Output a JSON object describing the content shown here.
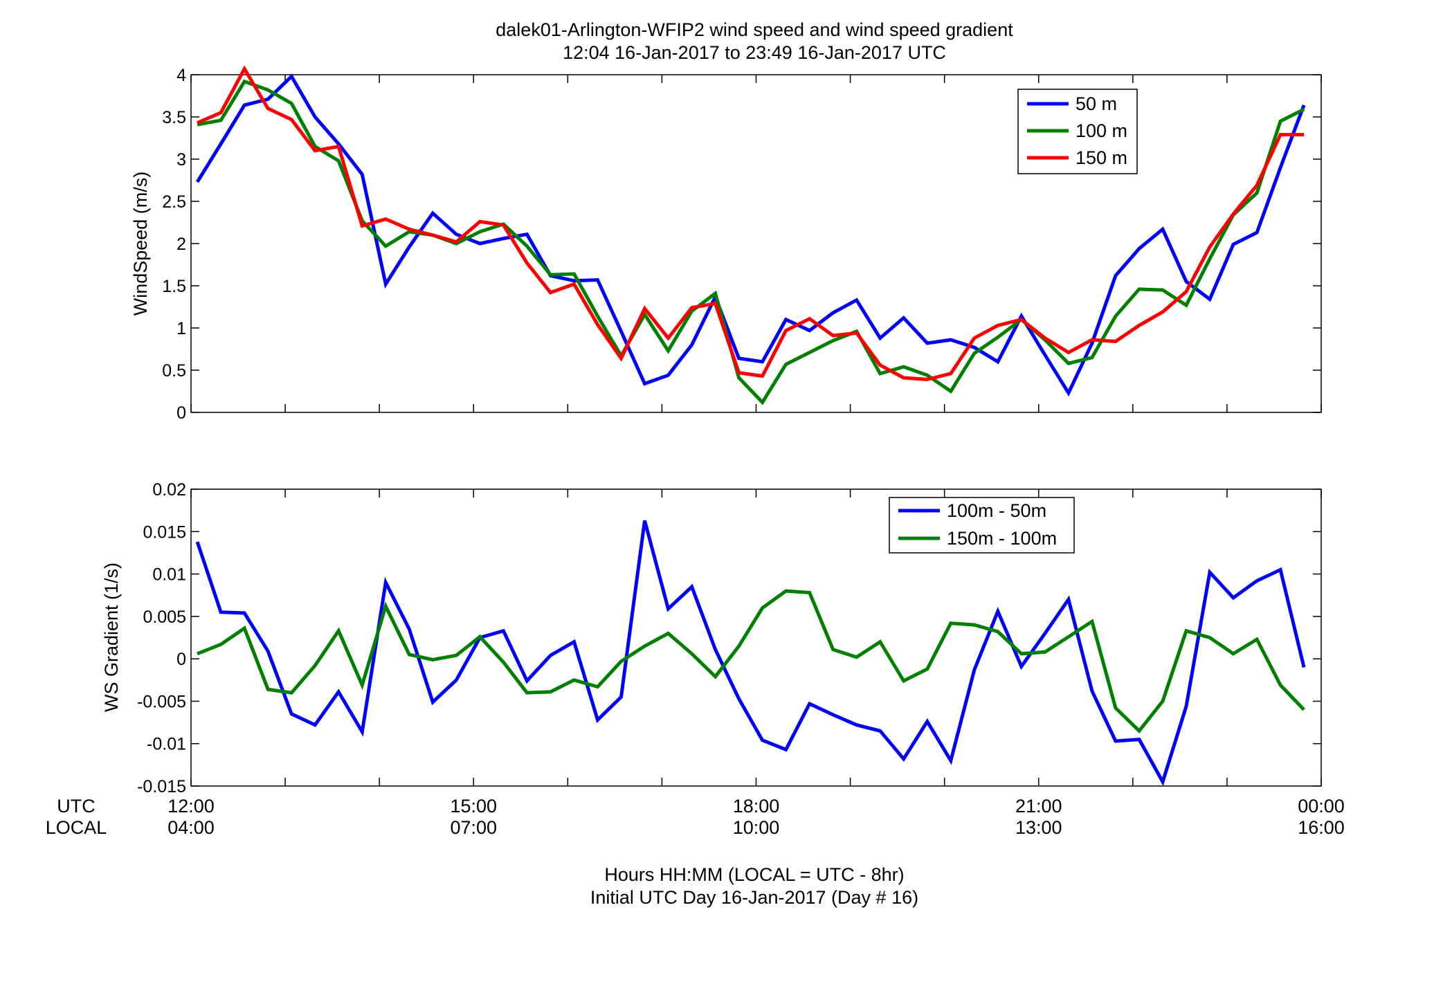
{
  "figure": {
    "title_line1": "dalek01-Arlington-WFIP2  wind speed and wind speed gradient",
    "title_line2": "12:04 16-Jan-2017 to 23:49 16-Jan-2017  UTC",
    "xlabel_line1": "Hours HH:MM  (LOCAL = UTC - 8hr)",
    "xlabel_line2": "Initial UTC Day 16-Jan-2017 (Day # 16)",
    "utc_row_label": "UTC",
    "local_row_label": "LOCAL",
    "utc_ticks": [
      "12:00",
      "15:00",
      "18:00",
      "21:00",
      "00:00"
    ],
    "local_ticks": [
      "04:00",
      "07:00",
      "10:00",
      "13:00",
      "16:00"
    ],
    "colors": {
      "blue": "#0000ff",
      "green": "#007f00",
      "red": "#ff0000"
    }
  },
  "chart_data": [
    {
      "type": "line",
      "ylabel": "WindSpeed (m/s)",
      "xlim": [
        12,
        24
      ],
      "ylim": [
        0,
        4
      ],
      "yticks": [
        0,
        0.5,
        1,
        1.5,
        2,
        2.5,
        3,
        3.5,
        4
      ],
      "ytick_labels": [
        "0",
        "0.5",
        "1",
        "1.5",
        "2",
        "2.5",
        "3",
        "3.5",
        "4"
      ],
      "grid": false,
      "legend": "top-right",
      "x": [
        12.067,
        12.317,
        12.567,
        12.817,
        13.067,
        13.317,
        13.567,
        13.817,
        14.067,
        14.317,
        14.567,
        14.817,
        15.067,
        15.317,
        15.567,
        15.817,
        16.067,
        16.317,
        16.567,
        16.817,
        17.067,
        17.317,
        17.567,
        17.817,
        18.067,
        18.317,
        18.567,
        18.817,
        19.067,
        19.317,
        19.567,
        19.817,
        20.067,
        20.317,
        20.567,
        20.817,
        21.067,
        21.317,
        21.567,
        21.817,
        22.067,
        22.317,
        22.567,
        22.817,
        23.067,
        23.317,
        23.567,
        23.817
      ],
      "series": [
        {
          "name": "50 m",
          "color": "#0000ff",
          "values": [
            2.73,
            3.18,
            3.64,
            3.71,
            3.98,
            3.5,
            3.18,
            2.82,
            1.52,
            1.96,
            2.36,
            2.11,
            2.0,
            2.06,
            2.11,
            1.62,
            1.56,
            1.57,
            0.96,
            0.34,
            0.44,
            0.8,
            1.37,
            0.64,
            0.6,
            1.1,
            0.97,
            1.18,
            1.33,
            0.88,
            1.12,
            0.82,
            0.86,
            0.77,
            0.6,
            1.14,
            0.68,
            0.23,
            0.82,
            1.62,
            1.94,
            2.17,
            1.55,
            1.34,
            1.99,
            2.13,
            2.9,
            3.64
          ]
        },
        {
          "name": "100 m",
          "color": "#007f00",
          "values": [
            3.41,
            3.46,
            3.92,
            3.82,
            3.66,
            3.15,
            2.98,
            2.27,
            1.97,
            2.14,
            2.1,
            2.0,
            2.14,
            2.23,
            1.97,
            1.63,
            1.64,
            1.14,
            0.67,
            1.16,
            0.73,
            1.2,
            1.41,
            0.41,
            0.12,
            0.57,
            0.71,
            0.85,
            0.96,
            0.46,
            0.54,
            0.44,
            0.25,
            0.7,
            0.89,
            1.1,
            0.86,
            0.58,
            0.65,
            1.14,
            1.46,
            1.45,
            1.27,
            1.82,
            2.34,
            2.6,
            3.45,
            3.59
          ]
        },
        {
          "name": "150 m",
          "color": "#ff0000",
          "values": [
            3.43,
            3.55,
            4.07,
            3.6,
            3.47,
            3.1,
            3.15,
            2.21,
            2.29,
            2.17,
            2.1,
            2.02,
            2.26,
            2.22,
            1.77,
            1.42,
            1.52,
            1.04,
            0.64,
            1.23,
            0.88,
            1.24,
            1.29,
            0.47,
            0.43,
            0.97,
            1.11,
            0.91,
            0.94,
            0.56,
            0.41,
            0.39,
            0.46,
            0.88,
            1.03,
            1.1,
            0.88,
            0.71,
            0.86,
            0.84,
            1.03,
            1.19,
            1.43,
            1.96,
            2.35,
            2.69,
            3.29,
            3.29
          ]
        }
      ]
    },
    {
      "type": "line",
      "ylabel": "WS Gradient (1/s)",
      "xlim": [
        12,
        24
      ],
      "ylim": [
        -0.015,
        0.02
      ],
      "yticks": [
        -0.015,
        -0.01,
        -0.005,
        0,
        0.005,
        0.01,
        0.015,
        0.02
      ],
      "ytick_labels": [
        "-0.015",
        "-0.01",
        "-0.005",
        "0",
        "0.005",
        "0.01",
        "0.015",
        "0.02"
      ],
      "grid": false,
      "legend": "top-right",
      "x": [
        12.067,
        12.317,
        12.567,
        12.817,
        13.067,
        13.317,
        13.567,
        13.817,
        14.067,
        14.317,
        14.567,
        14.817,
        15.067,
        15.317,
        15.567,
        15.817,
        16.067,
        16.317,
        16.567,
        16.817,
        17.067,
        17.317,
        17.567,
        17.817,
        18.067,
        18.317,
        18.567,
        18.817,
        19.067,
        19.317,
        19.567,
        19.817,
        20.067,
        20.317,
        20.567,
        20.817,
        21.067,
        21.317,
        21.567,
        21.817,
        22.067,
        22.317,
        22.567,
        22.817,
        23.067,
        23.317,
        23.567,
        23.817
      ],
      "series": [
        {
          "name": "100m - 50m",
          "color": "#0000ff",
          "values": [
            0.0138,
            0.0055,
            0.0054,
            0.0009,
            -0.0065,
            -0.0078,
            -0.0039,
            -0.0086,
            0.009,
            0.0035,
            -0.0051,
            -0.0025,
            0.0025,
            0.0033,
            -0.0026,
            0.0004,
            0.002,
            -0.0072,
            -0.0045,
            0.0163,
            0.0059,
            0.0085,
            0.0011,
            -0.0047,
            -0.0096,
            -0.0107,
            -0.0053,
            -0.0066,
            -0.0078,
            -0.0085,
            -0.0118,
            -0.0074,
            -0.012,
            -0.0013,
            0.0056,
            -0.0009,
            0.003,
            0.007,
            -0.0038,
            -0.0097,
            -0.0095,
            -0.0145,
            -0.0056,
            0.0102,
            0.0072,
            0.0092,
            0.0105,
            -0.001
          ]
        },
        {
          "name": "150m - 100m",
          "color": "#007f00",
          "values": [
            0.0006,
            0.0017,
            0.0036,
            -0.0036,
            -0.004,
            -0.0008,
            0.0033,
            -0.0031,
            0.0062,
            0.0005,
            -0.0001,
            0.0004,
            0.0026,
            -0.0004,
            -0.004,
            -0.0039,
            -0.0025,
            -0.0033,
            -0.0003,
            0.0015,
            0.003,
            0.0006,
            -0.0021,
            0.0015,
            0.006,
            0.008,
            0.0078,
            0.0011,
            0.0002,
            0.002,
            -0.0026,
            -0.0012,
            0.0042,
            0.004,
            0.0032,
            0.0006,
            0.0008,
            0.0026,
            0.0044,
            -0.0058,
            -0.0085,
            -0.005,
            0.0033,
            0.0025,
            0.0006,
            0.0023,
            -0.0031,
            -0.006
          ]
        }
      ]
    }
  ]
}
